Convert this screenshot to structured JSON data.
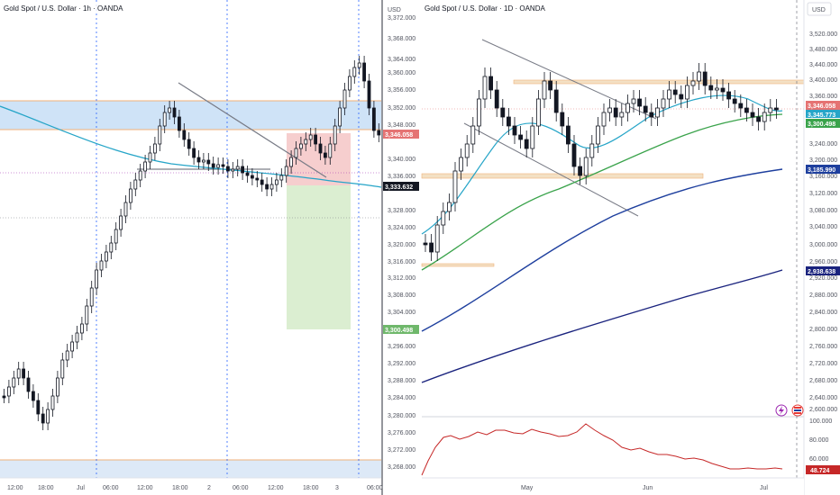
{
  "left_chart": {
    "title": "Gold Spot / U.S. Dollar · 1h · OANDA",
    "currency": "USD",
    "y_ticks": [
      "3,372.000",
      "3,368.000",
      "3,364.000",
      "3,360.000",
      "3,356.000",
      "3,352.000",
      "3,348.000",
      "3,340.000",
      "3,336.000",
      "3,328.000",
      "3,324.000",
      "3,320.000",
      "3,316.000",
      "3,312.000",
      "3,308.000",
      "3,304.000",
      "3,296.000",
      "3,292.000",
      "3,288.000",
      "3,284.000",
      "3,280.000",
      "3,276.000",
      "3,272.000",
      "3,268.000"
    ],
    "x_ticks": [
      "12:00",
      "18:00",
      "Jul",
      "06:00",
      "12:00",
      "18:00",
      "2",
      "06:00",
      "12:00",
      "18:00",
      "3",
      "06:00"
    ],
    "badges": {
      "price": "3,346.058",
      "current": "3,333.632",
      "target": "3,300.498"
    },
    "colors": {
      "up": "#ffffff",
      "down": "#131722",
      "ma": "#26a5c8",
      "zone": "#cfe3f7",
      "stop": "#f5c6c6",
      "target": "#d5ebc9"
    }
  },
  "right_chart": {
    "title": "Gold Spot / U.S. Dollar · 1D · OANDA",
    "currency": "USD",
    "y_ticks": [
      "3,520.000",
      "3,480.000",
      "3,440.000",
      "3,400.000",
      "3,360.000",
      "3,320.000",
      "3,240.000",
      "3,200.000",
      "3,160.000",
      "3,120.000",
      "3,080.000",
      "3,040.000",
      "3,000.000",
      "2,960.000",
      "2,920.000",
      "2,880.000",
      "2,840.000",
      "2,800.000",
      "2,760.000",
      "2,720.000",
      "2,680.000",
      "2,640.000",
      "2,600.000"
    ],
    "x_ticks": [
      "May",
      "Jun",
      "Jul"
    ],
    "badges": {
      "price": "3,346.058",
      "ma_fast": "3,345.773",
      "ma_mid": "3,300.498",
      "ma_slow": "3,185.990",
      "ma_long": "2,938.638"
    },
    "colors": {
      "ma_fast": "#26a5c8",
      "ma_mid": "#3aa34b",
      "ma_slow": "#1e3f9e",
      "ma_long": "#1a237e",
      "osc": "#c62828"
    },
    "oscillator": {
      "ticks": [
        "100.000",
        "80.000",
        "60.000"
      ],
      "value": "48.724"
    }
  }
}
